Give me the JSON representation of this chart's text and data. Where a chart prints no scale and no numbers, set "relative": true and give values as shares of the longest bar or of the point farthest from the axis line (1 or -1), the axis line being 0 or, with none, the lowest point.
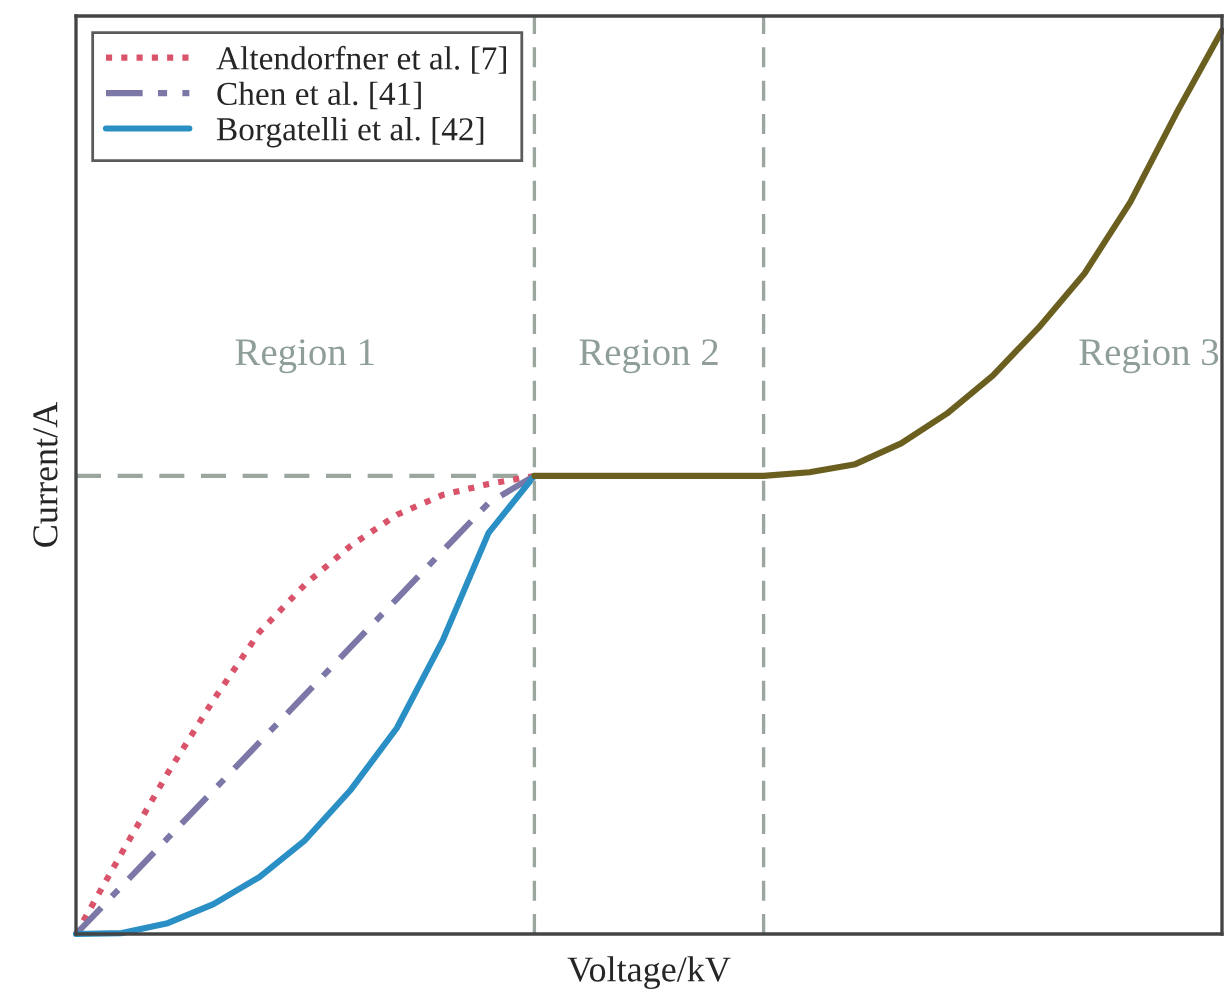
{
  "chart_data": {
    "type": "line",
    "relative": true,
    "xlabel": "Voltage/kV",
    "ylabel": "Current/A",
    "categories": [
      null,
      null,
      null,
      null,
      null,
      null,
      null,
      null,
      null,
      null,
      null,
      null,
      null,
      null,
      null,
      null,
      null,
      null,
      null,
      null,
      null,
      null,
      null,
      null,
      null,
      null
    ],
    "series": [
      {
        "color": "#9aa69e",
        "line_style": "dashed",
        "values": [
          0.507,
          0.507,
          0.507,
          0.507,
          0.507,
          0.507,
          0.507,
          0.507,
          0.507,
          0.507,
          0.507,
          null,
          null,
          null,
          null,
          null,
          null,
          null,
          null,
          null,
          null,
          null,
          null,
          null,
          null,
          null
        ]
      },
      {
        "name": "Altendorfner et al. [7]",
        "color": "#d9546a",
        "line_style": "dotted",
        "values": [
          0,
          0.09,
          0.178,
          0.259,
          0.334,
          0.387,
          0.43,
          0.464,
          0.486,
          0.498,
          0.507,
          null,
          null,
          null,
          null,
          null,
          null,
          null,
          null,
          null,
          null,
          null,
          null,
          null,
          null,
          null
        ]
      },
      {
        "name": "Chen et al. [41]",
        "color": "#7b77a6",
        "line_style": "dashdot",
        "values": [
          0,
          0.053,
          0.106,
          0.159,
          0.212,
          0.265,
          0.318,
          0.371,
          0.424,
          0.477,
          0.507,
          null,
          null,
          null,
          null,
          null,
          null,
          null,
          null,
          null,
          null,
          null,
          null,
          null,
          null,
          null
        ]
      },
      {
        "name": "Borgatelli et al. [42]",
        "color": "#2a8fc4",
        "line_style": "solid",
        "values": [
          0,
          0.001,
          0.012,
          0.033,
          0.063,
          0.104,
          0.16,
          0.228,
          0.325,
          0.444,
          0.507,
          null,
          null,
          null,
          null,
          null,
          null,
          null,
          null,
          null,
          null,
          null,
          null,
          null,
          null,
          null
        ]
      },
      {
        "color": "#6b5f20",
        "line_style": "solid",
        "values": [
          null,
          null,
          null,
          null,
          null,
          null,
          null,
          null,
          null,
          null,
          0.507,
          0.507,
          0.507,
          0.507,
          0.507,
          0.507,
          0.511,
          0.52,
          0.543,
          0.576,
          0.618,
          0.671,
          0.731,
          0.81,
          0.908,
          1.0
        ]
      }
    ],
    "annotations": [
      "Region 1",
      "Region 2",
      "Region 3"
    ],
    "legend": "top left"
  }
}
